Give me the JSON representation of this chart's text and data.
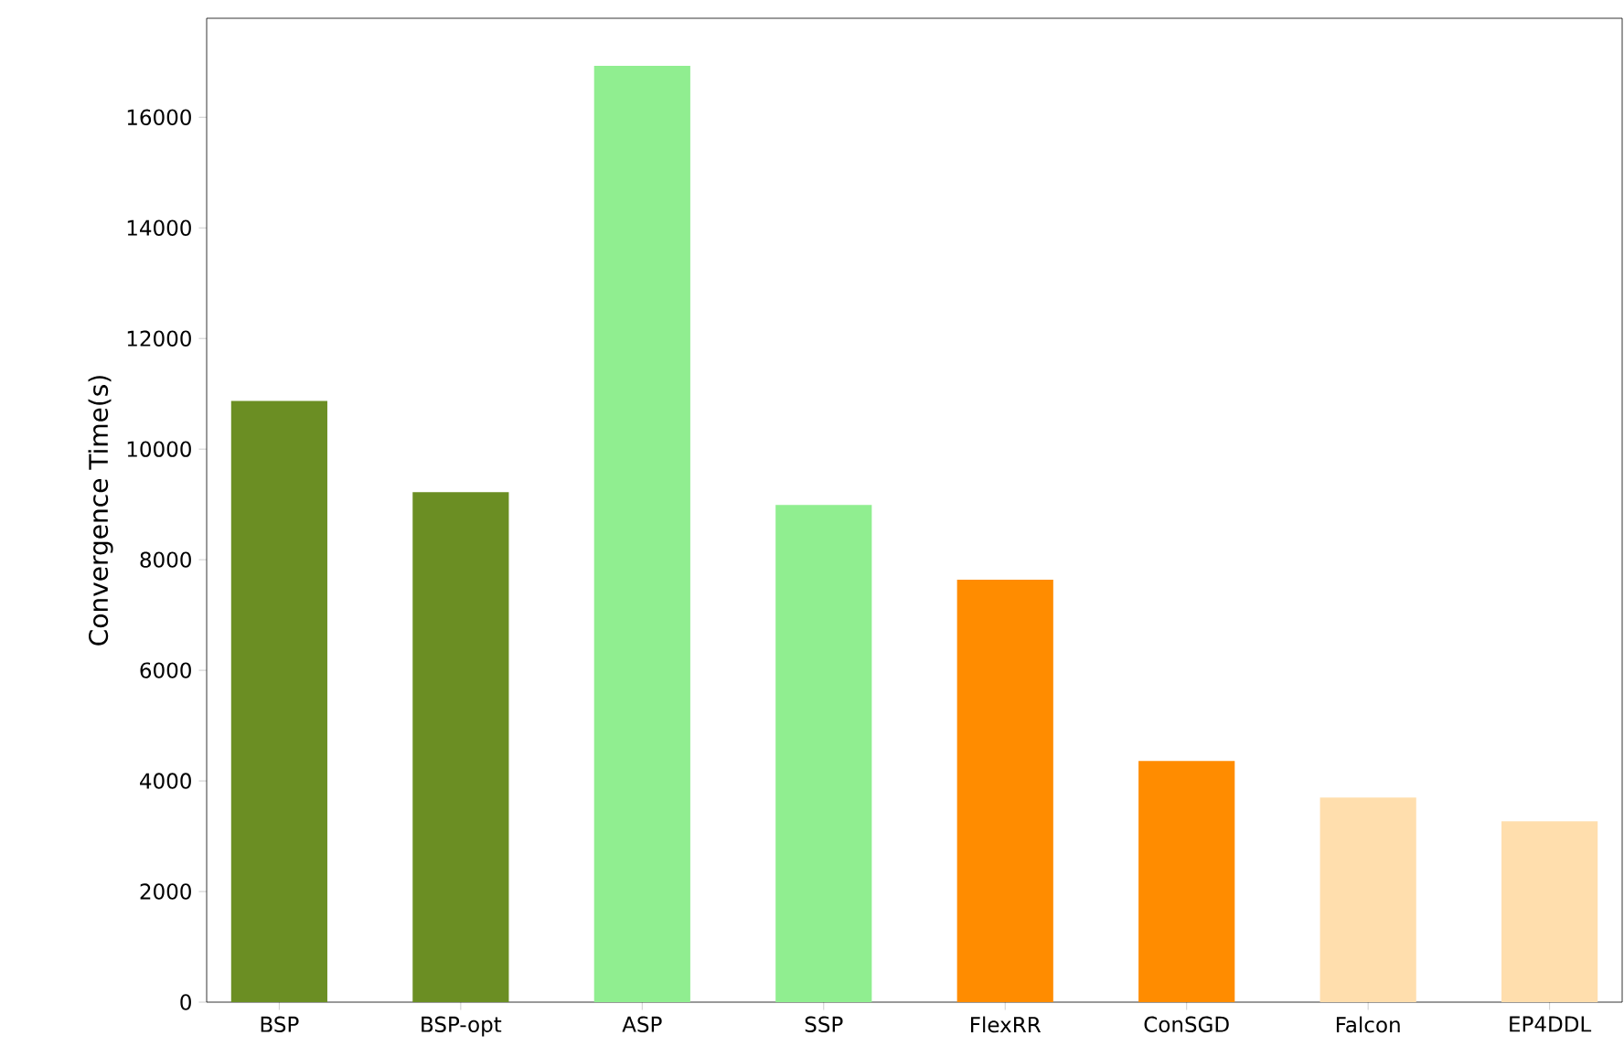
{
  "chart_data": {
    "type": "bar",
    "ylabel": "Convergence Time(s)",
    "categories": [
      "BSP",
      "BSP-opt",
      "ASP",
      "SSP",
      "FlexRR",
      "ConSGD",
      "Falcon",
      "EP4DDL"
    ],
    "values": [
      10870,
      9220,
      16930,
      8990,
      7640,
      4360,
      3700,
      3270
    ],
    "colors": [
      "#6b8e23",
      "#6b8e23",
      "#90ee90",
      "#90ee90",
      "#ff8c00",
      "#ff8c00",
      "#ffdead",
      "#ffdead"
    ],
    "ylim": [
      0,
      17790
    ],
    "yticks": [
      0,
      2000,
      4000,
      6000,
      8000,
      10000,
      12000,
      14000,
      16000
    ]
  }
}
